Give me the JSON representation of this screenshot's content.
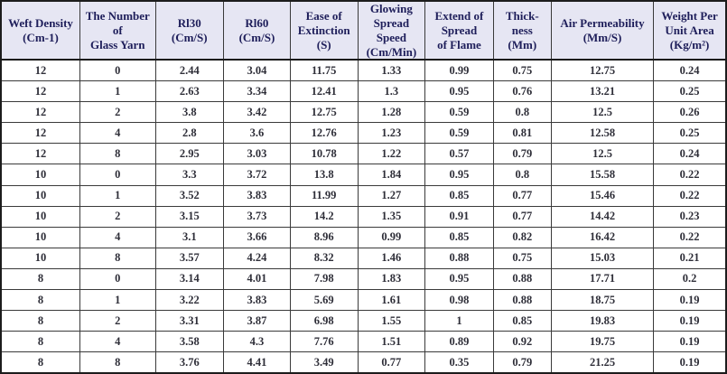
{
  "colors": {
    "header_bg": "#e6e6f3",
    "header_text": "#1e1e5a",
    "cell_text": "#2e2e38",
    "grid_border": "#3a3a3a",
    "outer_border": "#1c1c1c"
  },
  "table": {
    "columns": [
      "Weft Density\n(Cm-1)",
      "The Number\nof\nGlass Yarn",
      "Rl30\n(Cm/S)",
      "Rl60\n(Cm/S)",
      "Ease of\nExtinction\n(S)",
      "Glowing\nSpread\nSpeed\n(Cm/Min)",
      "Extend of\nSpread\nof Flame",
      "Thick-\nness\n(Mm)",
      "Air Permeability\n(Mm/S)",
      "Weight Per\nUnit Area\n(Kg/m²)"
    ],
    "rows": [
      [
        "12",
        "0",
        "2.44",
        "3.04",
        "11.75",
        "1.33",
        "0.99",
        "0.75",
        "12.75",
        "0.24"
      ],
      [
        "12",
        "1",
        "2.63",
        "3.34",
        "12.41",
        "1.3",
        "0.95",
        "0.76",
        "13.21",
        "0.25"
      ],
      [
        "12",
        "2",
        "3.8",
        "3.42",
        "12.75",
        "1.28",
        "0.59",
        "0.8",
        "12.5",
        "0.26"
      ],
      [
        "12",
        "4",
        "2.8",
        "3.6",
        "12.76",
        "1.23",
        "0.59",
        "0.81",
        "12.58",
        "0.25"
      ],
      [
        "12",
        "8",
        "2.95",
        "3.03",
        "10.78",
        "1.22",
        "0.57",
        "0.79",
        "12.5",
        "0.24"
      ],
      [
        "10",
        "0",
        "3.3",
        "3.72",
        "13.8",
        "1.84",
        "0.95",
        "0.8",
        "15.58",
        "0.22"
      ],
      [
        "10",
        "1",
        "3.52",
        "3.83",
        "11.99",
        "1.27",
        "0.85",
        "0.77",
        "15.46",
        "0.22"
      ],
      [
        "10",
        "2",
        "3.15",
        "3.73",
        "14.2",
        "1.35",
        "0.91",
        "0.77",
        "14.42",
        "0.23"
      ],
      [
        "10",
        "4",
        "3.1",
        "3.66",
        "8.96",
        "0.99",
        "0.85",
        "0.82",
        "16.42",
        "0.22"
      ],
      [
        "10",
        "8",
        "3.57",
        "4.24",
        "8.32",
        "1.46",
        "0.88",
        "0.75",
        "15.03",
        "0.21"
      ],
      [
        "8",
        "0",
        "3.14",
        "4.01",
        "7.98",
        "1.83",
        "0.95",
        "0.88",
        "17.71",
        "0.2"
      ],
      [
        "8",
        "1",
        "3.22",
        "3.83",
        "5.69",
        "1.61",
        "0.98",
        "0.88",
        "18.75",
        "0.19"
      ],
      [
        "8",
        "2",
        "3.31",
        "3.87",
        "6.98",
        "1.55",
        "1",
        "0.85",
        "19.83",
        "0.19"
      ],
      [
        "8",
        "4",
        "3.58",
        "4.3",
        "7.76",
        "1.51",
        "0.89",
        "0.92",
        "19.75",
        "0.19"
      ],
      [
        "8",
        "8",
        "3.76",
        "4.41",
        "3.49",
        "0.77",
        "0.35",
        "0.79",
        "21.25",
        "0.19"
      ]
    ]
  }
}
